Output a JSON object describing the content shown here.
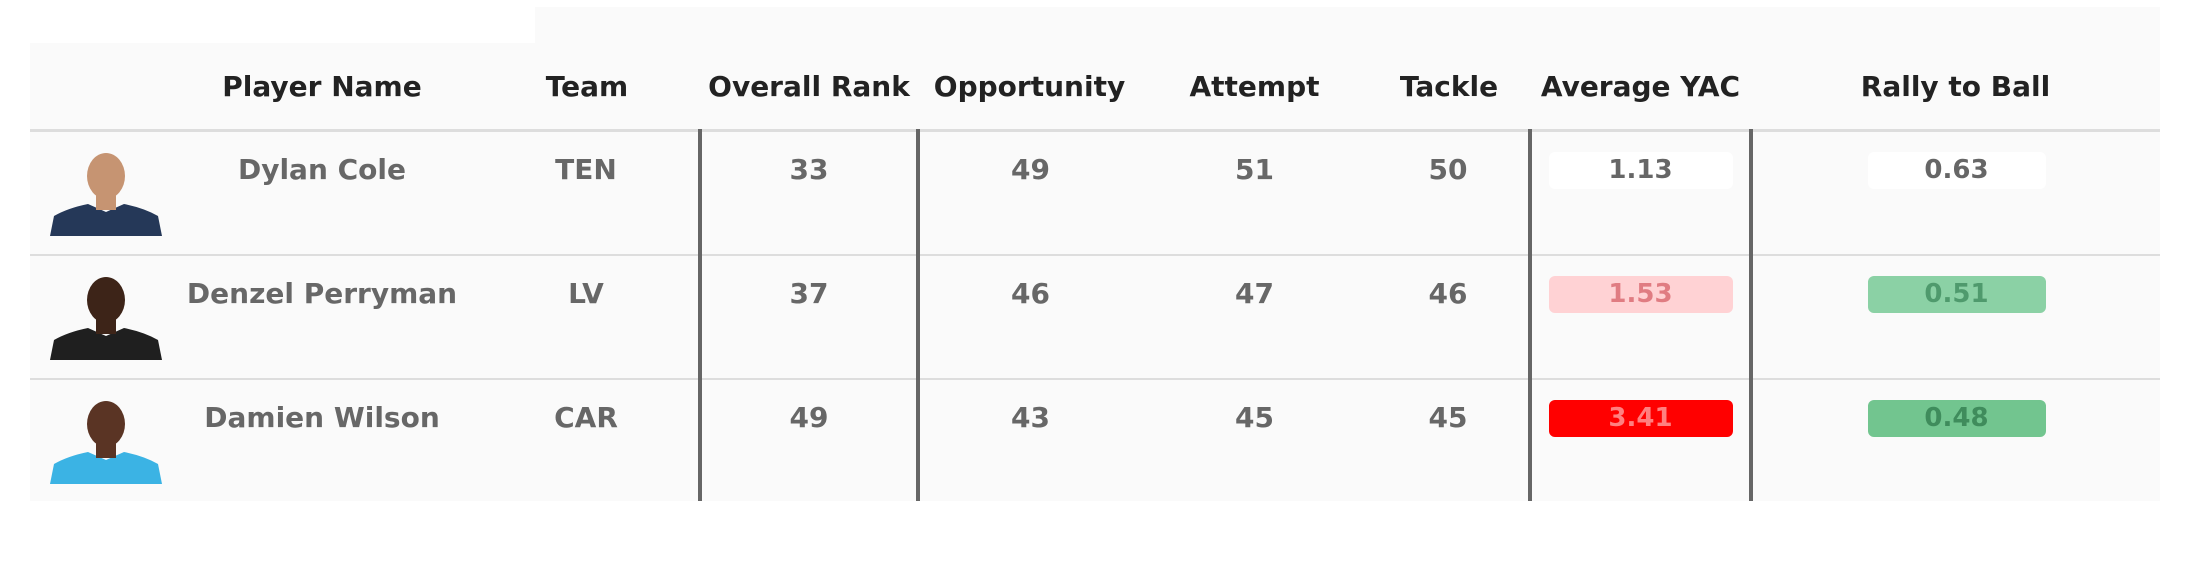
{
  "columns": {
    "photo": "",
    "player": "Player Name",
    "team": "Team",
    "rank": "Overall Rank",
    "opportunity": "Opportunity",
    "attempt": "Attempt",
    "tackle": "Tackle",
    "yac": "Average YAC",
    "rally": "Rally to Ball"
  },
  "rows": [
    {
      "player": "Dylan Cole",
      "team": "TEN",
      "rank": "33",
      "opportunity": "49",
      "attempt": "51",
      "tackle": "50",
      "yac": "1.13",
      "rally": "0.63",
      "yac_bg": "#ffffff",
      "yac_fg": "#666666",
      "rally_bg": "#ffffff",
      "rally_fg": "#666666",
      "jersey_color": "#253858",
      "skin_color": "#c69472"
    },
    {
      "player": "Denzel Perryman",
      "team": "LV",
      "rank": "37",
      "opportunity": "46",
      "attempt": "47",
      "tackle": "46",
      "yac": "1.53",
      "rally": "0.51",
      "yac_bg": "#ffd2d4",
      "yac_fg": "#e07c82",
      "rally_bg": "#8bd1a5",
      "rally_fg": "#4f9a6d",
      "jersey_color": "#1f1f1f",
      "skin_color": "#3d2418"
    },
    {
      "player": "Damien Wilson",
      "team": "CAR",
      "rank": "49",
      "opportunity": "43",
      "attempt": "45",
      "tackle": "45",
      "yac": "3.41",
      "rally": "0.48",
      "yac_bg": "#ff0000",
      "yac_fg": "#ff8080",
      "rally_bg": "#72c58f",
      "rally_fg": "#3f8c5c",
      "jersey_color": "#3bb3e4",
      "skin_color": "#5a3424"
    }
  ]
}
